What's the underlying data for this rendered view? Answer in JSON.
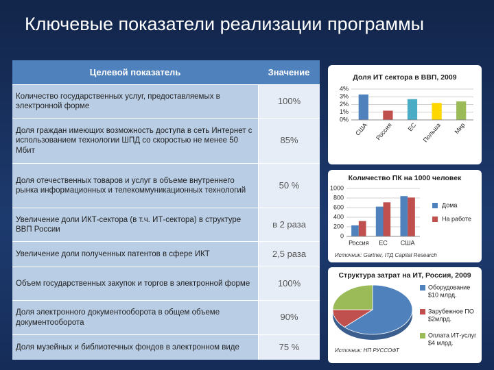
{
  "title": "Ключевые показатели реализации программы",
  "table": {
    "header": [
      "Целевой показатель",
      "Значение"
    ],
    "rows": [
      [
        "Количество государственных услуг, предоставляемых в электронной форме",
        "100%"
      ],
      [
        "Доля граждан имеющих возможность доступа в сеть Интернет с использованием технологии ШПД со скоростью не менее 50 Мбит",
        "85%"
      ],
      [
        "Доля отечественных товаров и услуг в объеме внутреннего рынка информационных и телекоммуникационных технологий",
        "50 %"
      ],
      [
        "Увеличение доли ИКТ-сектора (в т.ч. ИТ-сектора) в структуре ВВП России",
        "в 2 раза"
      ],
      [
        "Увеличение доли полученных патентов в сфере ИКТ",
        "2,5 раза"
      ],
      [
        "Объем государственных закупок и торгов в электронной форме",
        "100%"
      ],
      [
        "Доля электронного документооборота в общем объеме документооборота",
        "90%"
      ],
      [
        "Доля музейных и библиотечных фондов в электронном виде",
        "75 %"
      ]
    ]
  },
  "chart_data": [
    {
      "type": "bar",
      "title": "Доля ИТ сектора в ВВП, 2009",
      "categories": [
        "США",
        "Россия",
        "ЕС",
        "Польша",
        "Мир"
      ],
      "values": [
        3.3,
        1.2,
        2.7,
        2.2,
        2.4
      ],
      "colors": [
        "#4f81bd",
        "#c0504d",
        "#4bacc6",
        "#ffd700",
        "#9bbb59"
      ],
      "ylim": [
        0,
        4
      ],
      "yticks": [
        {
          "value": 0,
          "label": "0%"
        },
        {
          "value": 1,
          "label": "1%"
        },
        {
          "value": 2,
          "label": "2%"
        },
        {
          "value": 3,
          "label": "3%"
        },
        {
          "value": 4,
          "label": "4%"
        }
      ],
      "grid": true
    },
    {
      "type": "bar",
      "title": "Количество ПК на 1000 человек",
      "categories": [
        "Россия",
        "ЕС",
        "США"
      ],
      "series": [
        {
          "name": "Дома",
          "color": "#4f81bd",
          "values": [
            230,
            620,
            840
          ]
        },
        {
          "name": "На работе",
          "color": "#c0504d",
          "values": [
            320,
            710,
            810
          ]
        }
      ],
      "ylim": [
        0,
        1000
      ],
      "yticks": [
        0,
        200,
        400,
        600,
        800,
        1000
      ],
      "grid": true,
      "legend": "right",
      "source": "Источник: Gartner, IТД Capital Research"
    },
    {
      "type": "pie",
      "title": "Структура затрат на ИТ, Россия, 2009",
      "categories": [
        "Оборудование",
        "Зарубежное ПО",
        "Оплата ИТ-услуг"
      ],
      "values": [
        10,
        2,
        4
      ],
      "value_labels": [
        "$10 млрд.",
        "$2млрд.",
        "$4 млрд."
      ],
      "colors": [
        "#4f81bd",
        "#c0504d",
        "#9bbb59"
      ],
      "legend": "right",
      "source": "Источник: НП РУССОФТ"
    }
  ]
}
